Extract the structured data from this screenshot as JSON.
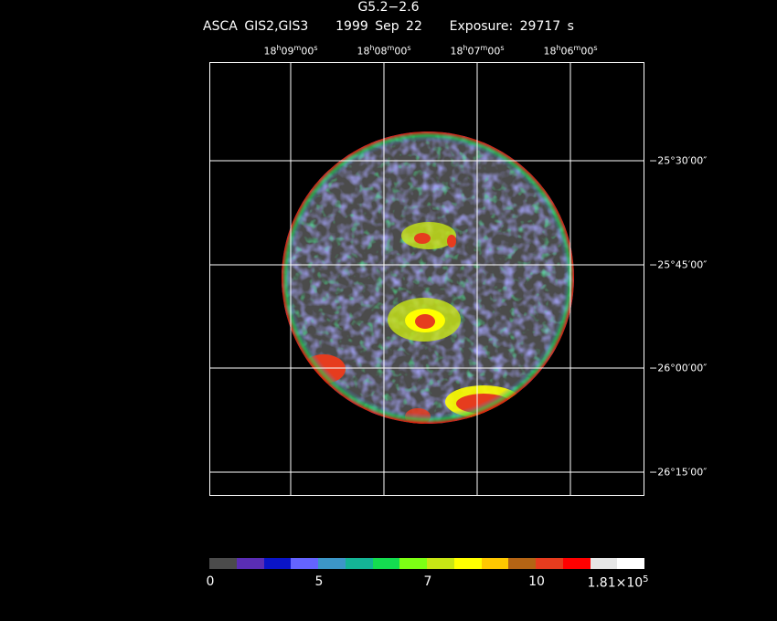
{
  "header": {
    "object": "G5.2−2.6",
    "instrument": "ASCA GIS2,GIS3",
    "date": "1999 Sep 22",
    "exposure": "Exposure: 29717 s"
  },
  "ra_ticks": [
    {
      "h": "18",
      "m": "09",
      "s": "00"
    },
    {
      "h": "18",
      "m": "08",
      "s": "00"
    },
    {
      "h": "18",
      "m": "07",
      "s": "00"
    },
    {
      "h": "18",
      "m": "06",
      "s": "00"
    }
  ],
  "dec_ticks": [
    "−25°30′00″",
    "−25°45′00″",
    "−26°00′00″",
    "−26°15′00″"
  ],
  "colorbar": {
    "colors": [
      "#4b4b4b",
      "#5a2db4",
      "#0a14c8",
      "#6464ff",
      "#3c96c8",
      "#14b496",
      "#14dc50",
      "#7dff14",
      "#c8e614",
      "#ffff00",
      "#ffc800",
      "#b46414",
      "#e63c1e",
      "#ff0000",
      "#e6e6e6",
      "#ffffff"
    ],
    "labels": [
      "0",
      "5",
      "7",
      "10",
      "1.81×10"
    ],
    "exponent": "5"
  },
  "map_palette": {
    "background": "#4b4b4b",
    "low": "#6464ff",
    "mid": "#14dc50",
    "midhigh": "#c8e614",
    "high": "#ffff00",
    "peak": "#e63c1e",
    "rim": "#ff0000"
  }
}
